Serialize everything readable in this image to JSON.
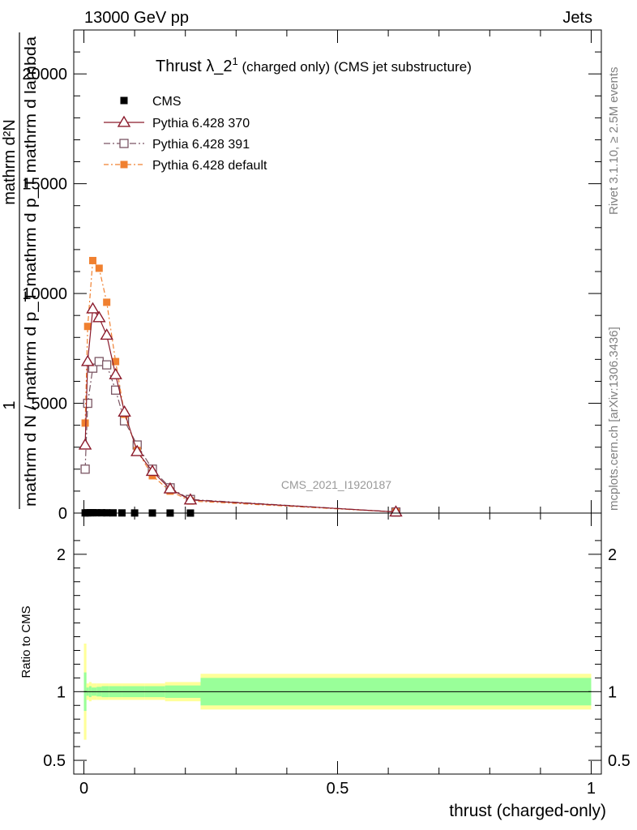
{
  "header": {
    "left": "13000 GeV pp",
    "right": "Jets"
  },
  "side_labels": {
    "rivet": "Rivet 3.1.10, ≥ 2.5M events",
    "mcplots": "mcplots.cern.ch [arXiv:1306.3436]"
  },
  "chart_data": [
    {
      "panel": "main",
      "type": "line",
      "title_main": "Thrust λ_2",
      "title_sup": "1",
      "title_rest": " (charged only) (CMS jet substructure)",
      "ylabel_numerator": "1",
      "ylabel_denominator": "mathrm d N / mathrm d p_T mathrm d p_T mathrm d lambda",
      "ylabel_top": "mathrm d²N",
      "ylim": [
        0,
        22000
      ],
      "yticks": [
        0,
        5000,
        10000,
        15000,
        20000
      ],
      "ytick_labels": [
        "0",
        "5000",
        "10000",
        "15000",
        "20000"
      ],
      "xlim": [
        -0.02,
        1.02
      ],
      "watermark": "CMS_2021_I1920187",
      "series": [
        {
          "name": "CMS",
          "color": "#000000",
          "marker": "square-filled",
          "x": [
            0.0025,
            0.0075,
            0.0125,
            0.0175,
            0.025,
            0.035,
            0.045,
            0.0575,
            0.075,
            0.1,
            0.135,
            0.17,
            0.21
          ],
          "y": [
            8,
            12,
            15,
            15,
            15,
            14,
            12,
            10,
            7,
            5,
            3,
            2,
            1
          ]
        },
        {
          "name": "Pythia 6.428 370",
          "color": "#8b1a2b",
          "marker": "triangle-open",
          "x": [
            0.0025,
            0.0075,
            0.0175,
            0.03,
            0.045,
            0.0625,
            0.08,
            0.105,
            0.135,
            0.17,
            0.21,
            0.615
          ],
          "y": [
            3100,
            6900,
            9300,
            8900,
            8100,
            6300,
            4600,
            2800,
            1900,
            1100,
            600,
            50
          ]
        },
        {
          "name": "Pythia 6.428 391",
          "color": "#7a5563",
          "marker": "square-open",
          "x": [
            0.0025,
            0.0075,
            0.0175,
            0.03,
            0.045,
            0.0625,
            0.08,
            0.105,
            0.135,
            0.17,
            0.21,
            0.615
          ],
          "y": [
            2000,
            5000,
            6600,
            6900,
            6750,
            5600,
            4200,
            3100,
            2000,
            1150,
            620,
            50
          ]
        },
        {
          "name": "Pythia 6.428 default",
          "color": "#f08030",
          "marker": "square-filled",
          "x": [
            0.0025,
            0.0075,
            0.0175,
            0.03,
            0.045,
            0.0625,
            0.08,
            0.105,
            0.135,
            0.17,
            0.21,
            0.615
          ],
          "y": [
            4100,
            8500,
            11500,
            11150,
            9600,
            6900,
            4500,
            2850,
            1700,
            1000,
            550,
            50
          ]
        }
      ]
    },
    {
      "panel": "ratio",
      "type": "area",
      "ylabel": "Ratio to CMS",
      "xlabel": "thrust (charged-only)",
      "ylim": [
        0.4,
        2.3
      ],
      "yticks": [
        0.5,
        1,
        2
      ],
      "ytick_labels": [
        "0.5",
        "1",
        "2"
      ],
      "xticks": [
        0,
        0.5,
        1
      ],
      "xtick_labels": [
        "0",
        "0.5",
        "1"
      ],
      "bin_edges": [
        0.0,
        0.005,
        0.01,
        0.015,
        0.025,
        0.035,
        0.05,
        0.075,
        0.12,
        0.16,
        0.23,
        1.0
      ],
      "inner_band_halfwidth": [
        0.14,
        0.03,
        0.04,
        0.03,
        0.035,
        0.04,
        0.04,
        0.04,
        0.04,
        0.045,
        0.1
      ],
      "outer_band_halfwidth": [
        0.35,
        0.06,
        0.07,
        0.06,
        0.06,
        0.06,
        0.06,
        0.06,
        0.06,
        0.07,
        0.13
      ],
      "inner_color": "#99ff99",
      "outer_color": "#ffff99",
      "reference_line": 1
    }
  ]
}
